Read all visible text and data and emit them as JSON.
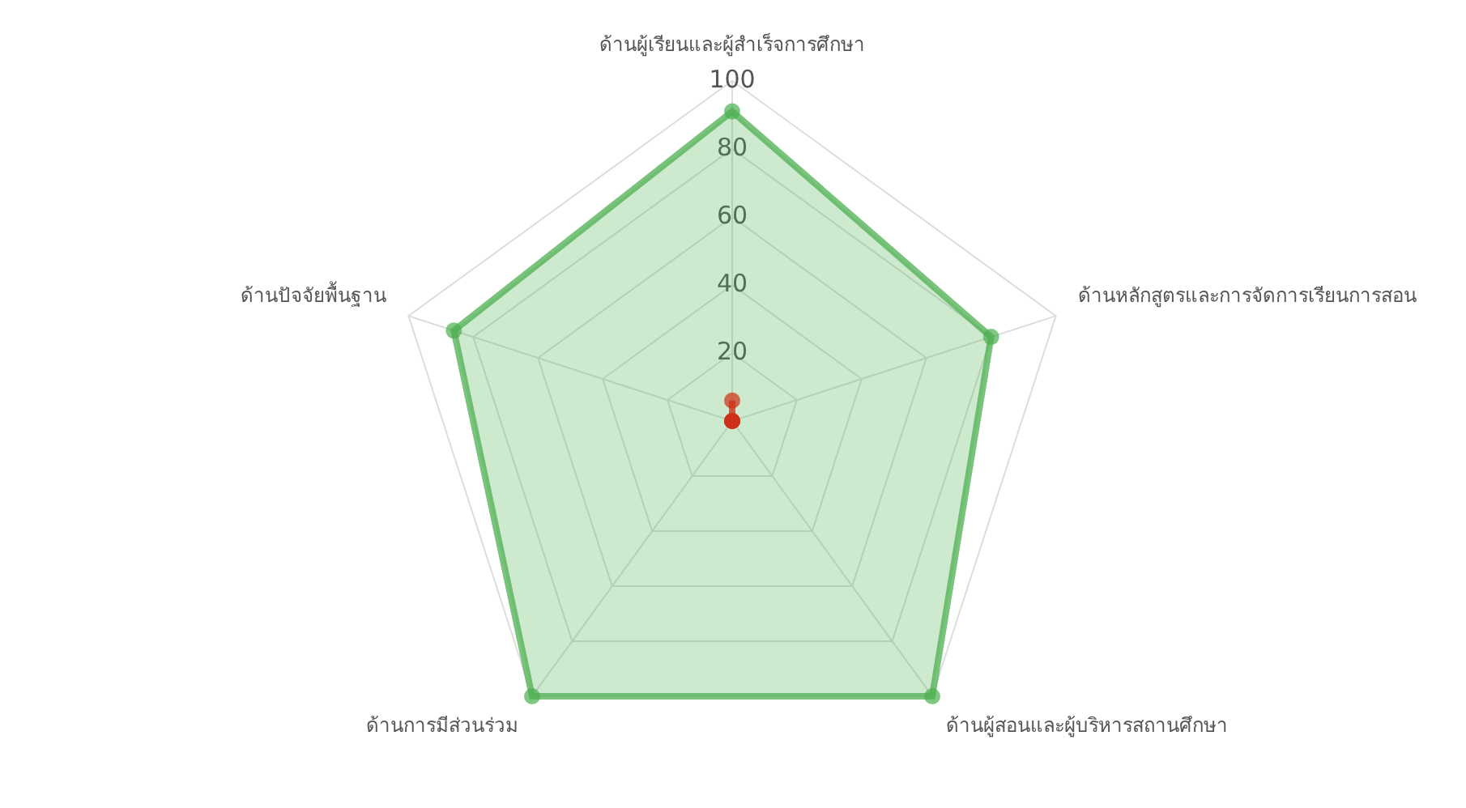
{
  "chart_data": {
    "type": "radar",
    "categories": [
      "ด้านผู้เรียนและผู้สำเร็จการศึกษา",
      "ด้านหลักสูตรและการจัดการเรียนการสอน",
      "ด้านผู้สอนและผู้บริหารสถานศึกษา",
      "ด้านการมีส่วนร่วม",
      "ด้านปัจจัยพื้นฐาน"
    ],
    "series": [
      {
        "color": "#4caf50",
        "values": [
          91,
          80,
          100,
          100,
          86
        ]
      },
      {
        "color": "#ff0000",
        "values": [
          6,
          0,
          0,
          0,
          0
        ]
      }
    ],
    "ylim": [
      0,
      100
    ],
    "yticks": [
      20,
      40,
      60,
      80,
      100
    ],
    "grid": true,
    "legend": false,
    "marker": "circle"
  }
}
